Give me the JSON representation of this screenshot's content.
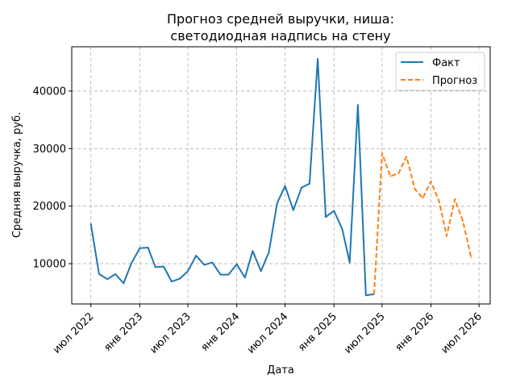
{
  "chart_data": {
    "type": "line",
    "title_lines": [
      "Прогноз средней выручки, ниша:",
      "светодиодная надпись на стену"
    ],
    "xlabel": "Дата",
    "ylabel": "Средняя выручка, руб.",
    "grid": true,
    "legend_position": "top-right",
    "x_ticks": [
      "2022-07-01",
      "2023-01-01",
      "2023-07-01",
      "2024-01-01",
      "2024-07-01",
      "2025-01-01",
      "2025-07-01",
      "2026-01-01",
      "2026-07-01"
    ],
    "x_tick_labels": [
      "июл 2022",
      "янв 2023",
      "июл 2023",
      "янв 2024",
      "июл 2024",
      "янв 2025",
      "июл 2025",
      "янв 2026",
      "июл 2026"
    ],
    "y_ticks": [
      10000,
      20000,
      30000,
      40000
    ],
    "y_tick_labels": [
      "10000",
      "20000",
      "30000",
      "40000"
    ],
    "xlim": [
      "2022-04-20",
      "2026-08-12"
    ],
    "ylim": [
      3000,
      47700
    ],
    "series": [
      {
        "name": "Факт",
        "color": "#1f77b4",
        "style": "solid",
        "x": [
          "2022-07-01",
          "2022-08-01",
          "2022-09-01",
          "2022-10-01",
          "2022-11-01",
          "2022-12-01",
          "2023-01-01",
          "2023-02-01",
          "2023-03-01",
          "2023-04-01",
          "2023-05-01",
          "2023-06-01",
          "2023-07-01",
          "2023-08-01",
          "2023-09-01",
          "2023-10-01",
          "2023-11-01",
          "2023-12-01",
          "2024-01-01",
          "2024-02-01",
          "2024-03-01",
          "2024-04-01",
          "2024-05-01",
          "2024-06-01",
          "2024-07-01",
          "2024-08-01",
          "2024-09-01",
          "2024-10-01",
          "2024-11-01",
          "2024-12-01",
          "2025-01-01",
          "2025-02-01",
          "2025-03-01",
          "2025-04-01",
          "2025-05-01",
          "2025-06-01"
        ],
        "y": [
          16900,
          8200,
          7300,
          8200,
          6600,
          10100,
          12700,
          12800,
          9400,
          9500,
          6900,
          7400,
          8700,
          11400,
          9800,
          10200,
          8100,
          8100,
          9900,
          7600,
          12200,
          8700,
          12000,
          20500,
          23500,
          19300,
          23200,
          23900,
          45600,
          18100,
          19200,
          16000,
          10200,
          37600,
          4500,
          4700
        ]
      },
      {
        "name": "Прогноз",
        "color": "#ff7f0e",
        "style": "dashed",
        "x": [
          "2025-06-01",
          "2025-07-01",
          "2025-08-01",
          "2025-09-01",
          "2025-10-01",
          "2025-11-01",
          "2025-12-01",
          "2026-01-01",
          "2026-02-01",
          "2026-03-01",
          "2026-04-01",
          "2026-05-01",
          "2026-06-01"
        ],
        "y": [
          4700,
          29200,
          25200,
          25700,
          28600,
          23000,
          21400,
          24300,
          20800,
          14800,
          21200,
          17400,
          11100
        ]
      }
    ]
  }
}
